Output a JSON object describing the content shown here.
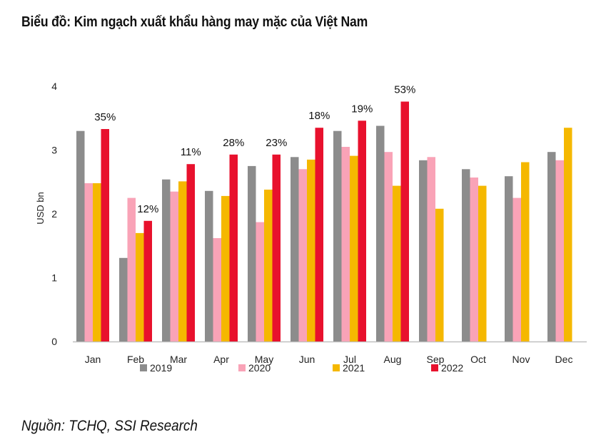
{
  "title": "Biểu đồ: Kim ngạch xuất khẩu hàng may mặc của Việt Nam",
  "source": "Nguồn: TCHQ, SSI Research",
  "colors": {
    "2019": "#8c8c8c",
    "2020": "#f9a3b7",
    "2021": "#f5b800",
    "2022": "#e8112d",
    "axis": "#bfbfbf"
  },
  "chart_data": {
    "type": "bar",
    "title": "Biểu đồ: Kim ngạch xuất khẩu hàng may mặc của Việt Nam",
    "xlabel": "",
    "ylabel": "USD bn",
    "ylim": [
      0,
      4
    ],
    "yticks": [
      "0",
      "1",
      "2",
      "3",
      "4"
    ],
    "grid": false,
    "legend_position": "bottom",
    "categories": [
      "Jan",
      "Feb",
      "Mar",
      "Apr",
      "May",
      "Jun",
      "Jul",
      "Aug",
      "Sep",
      "Oct",
      "Nov",
      "Dec"
    ],
    "series": [
      {
        "name": "2019",
        "values": [
          3.3,
          1.31,
          2.54,
          2.36,
          2.75,
          2.89,
          3.3,
          3.38,
          2.84,
          2.7,
          2.59,
          2.97
        ]
      },
      {
        "name": "2020",
        "values": [
          2.48,
          2.25,
          2.35,
          1.62,
          1.87,
          2.7,
          3.05,
          2.97,
          2.89,
          2.57,
          2.25,
          2.84
        ]
      },
      {
        "name": "2021",
        "values": [
          2.48,
          1.7,
          2.51,
          2.28,
          2.38,
          2.85,
          2.91,
          2.44,
          2.08,
          2.44,
          2.81,
          3.35
        ]
      },
      {
        "name": "2022",
        "values": [
          3.33,
          1.89,
          2.78,
          2.93,
          2.93,
          3.35,
          3.46,
          3.76,
          null,
          null,
          null,
          null
        ]
      }
    ],
    "annotations": [
      "35%",
      "12%",
      "11%",
      "28%",
      "23%",
      "18%",
      "19%",
      "53%",
      null,
      null,
      null,
      null
    ]
  }
}
